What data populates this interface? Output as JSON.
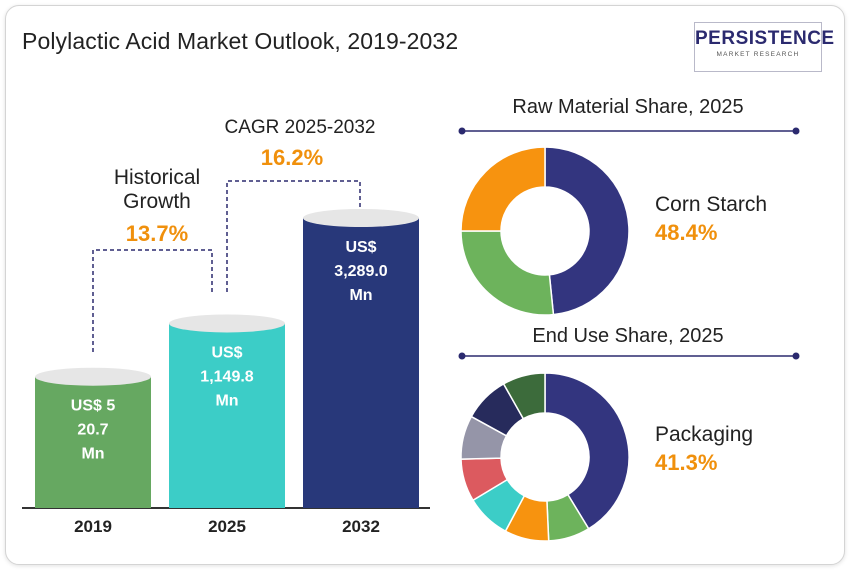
{
  "title": "Polylactic Acid Market Outlook, 2019-2032",
  "logo": {
    "main": "PERSISTENCE",
    "sub": "MARKET RESEARCH"
  },
  "colors": {
    "bar_2019": "#66a861",
    "bar_2025": "#3ccdc7",
    "bar_2032": "#28387a",
    "orange": "#f0900c",
    "navy": "#2b2a6f"
  },
  "growth": {
    "historical_label_line1": "Historical",
    "historical_label_line2": "Growth",
    "historical_value": "13.7%",
    "cagr_label": "CAGR 2025-2032",
    "cagr_value": "16.2%"
  },
  "chart_data": [
    {
      "type": "bar",
      "categories": [
        "2019",
        "2025",
        "2032"
      ],
      "values": [
        520.7,
        1149.8,
        3289.0
      ],
      "value_labels": [
        [
          "US$ 5",
          "20.7",
          "Mn"
        ],
        [
          "US$",
          "1,149.8",
          "Mn"
        ],
        [
          "US$",
          "3,289.0",
          "Mn"
        ]
      ]
    },
    {
      "type": "pie",
      "title": "Raw Material Share, 2025",
      "highlight_label": "Corn Starch",
      "highlight_value": "48.4%",
      "slices": [
        {
          "value": 48.4,
          "color": "#33357f"
        },
        {
          "value": 26.6,
          "color": "#6db35c"
        },
        {
          "value": 25.0,
          "color": "#f7930f"
        }
      ]
    },
    {
      "type": "pie",
      "title": "End Use Share, 2025",
      "highlight_label": "Packaging",
      "highlight_value": "41.3%",
      "slices": [
        {
          "value": 41.3,
          "color": "#33357f"
        },
        {
          "value": 8.0,
          "color": "#6db35c"
        },
        {
          "value": 8.5,
          "color": "#f7930f"
        },
        {
          "value": 8.6,
          "color": "#3ccdc7"
        },
        {
          "value": 8.2,
          "color": "#dc5a5f"
        },
        {
          "value": 8.4,
          "color": "#9595a8"
        },
        {
          "value": 8.8,
          "color": "#272b5c"
        },
        {
          "value": 8.2,
          "color": "#3c6b3b"
        }
      ]
    }
  ]
}
